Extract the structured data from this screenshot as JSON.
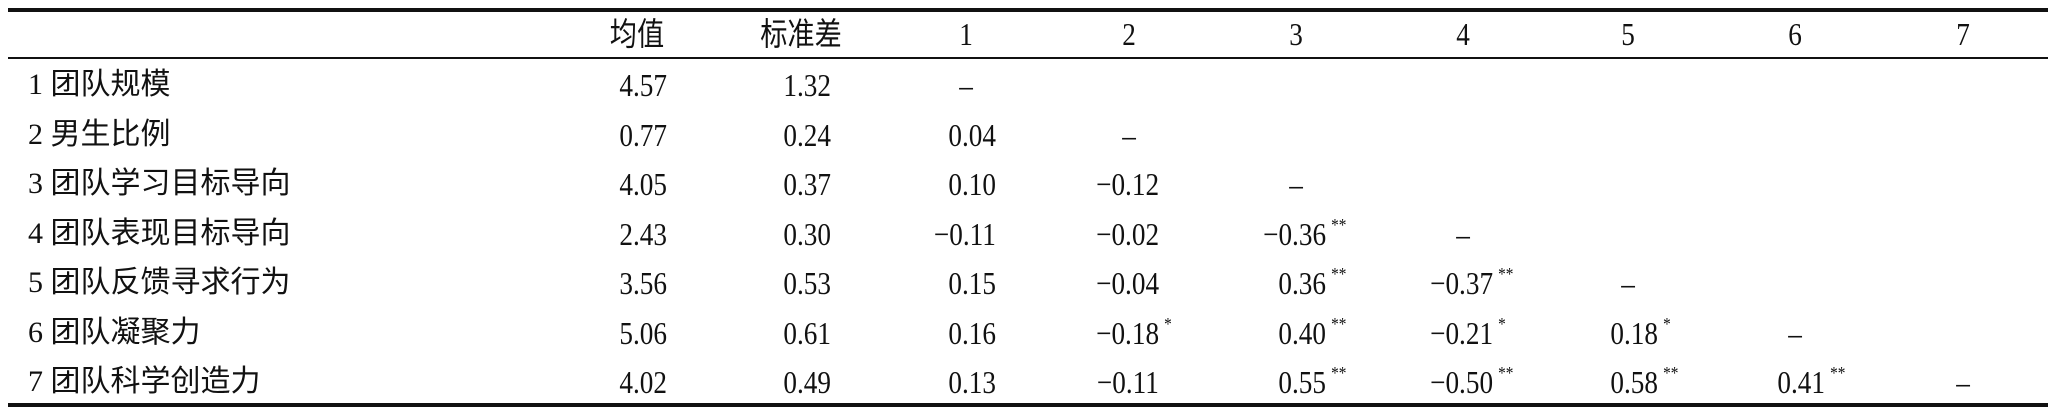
{
  "table": {
    "headers": [
      "",
      "均值",
      "标准差",
      "1",
      "2",
      "3",
      "4",
      "5",
      "6",
      "7"
    ],
    "rows": [
      {
        "label": "1 团队规模",
        "mean": "4.57",
        "sd": "1.32",
        "corr": [
          {
            "v": "–",
            "s": ""
          }
        ]
      },
      {
        "label": "2 男生比例",
        "mean": "0.77",
        "sd": "0.24",
        "corr": [
          {
            "v": "0.04",
            "s": ""
          },
          {
            "v": "–",
            "s": ""
          }
        ]
      },
      {
        "label": "3 团队学习目标导向",
        "mean": "4.05",
        "sd": "0.37",
        "corr": [
          {
            "v": "0.10",
            "s": ""
          },
          {
            "v": "−0.12",
            "s": ""
          },
          {
            "v": "–",
            "s": ""
          }
        ]
      },
      {
        "label": "4 团队表现目标导向",
        "mean": "2.43",
        "sd": "0.30",
        "corr": [
          {
            "v": "−0.11",
            "s": ""
          },
          {
            "v": "−0.02",
            "s": ""
          },
          {
            "v": "−0.36",
            "s": "**"
          },
          {
            "v": "–",
            "s": ""
          }
        ]
      },
      {
        "label": "5 团队反馈寻求行为",
        "mean": "3.56",
        "sd": "0.53",
        "corr": [
          {
            "v": "0.15",
            "s": ""
          },
          {
            "v": "−0.04",
            "s": ""
          },
          {
            "v": "0.36",
            "s": "**"
          },
          {
            "v": "−0.37",
            "s": "**"
          },
          {
            "v": "–",
            "s": ""
          }
        ]
      },
      {
        "label": "6 团队凝聚力",
        "mean": "5.06",
        "sd": "0.61",
        "corr": [
          {
            "v": "0.16",
            "s": ""
          },
          {
            "v": "−0.18",
            "s": "*"
          },
          {
            "v": "0.40",
            "s": "**"
          },
          {
            "v": "−0.21",
            "s": "*"
          },
          {
            "v": "0.18",
            "s": "*"
          },
          {
            "v": "–",
            "s": ""
          }
        ]
      },
      {
        "label": "7 团队科学创造力",
        "mean": "4.02",
        "sd": "0.49",
        "corr": [
          {
            "v": "0.13",
            "s": ""
          },
          {
            "v": "−0.11",
            "s": ""
          },
          {
            "v": "0.55",
            "s": "**"
          },
          {
            "v": "−0.50",
            "s": "**"
          },
          {
            "v": "0.58",
            "s": "**"
          },
          {
            "v": "0.41",
            "s": "**"
          },
          {
            "v": "–",
            "s": ""
          }
        ]
      }
    ]
  }
}
